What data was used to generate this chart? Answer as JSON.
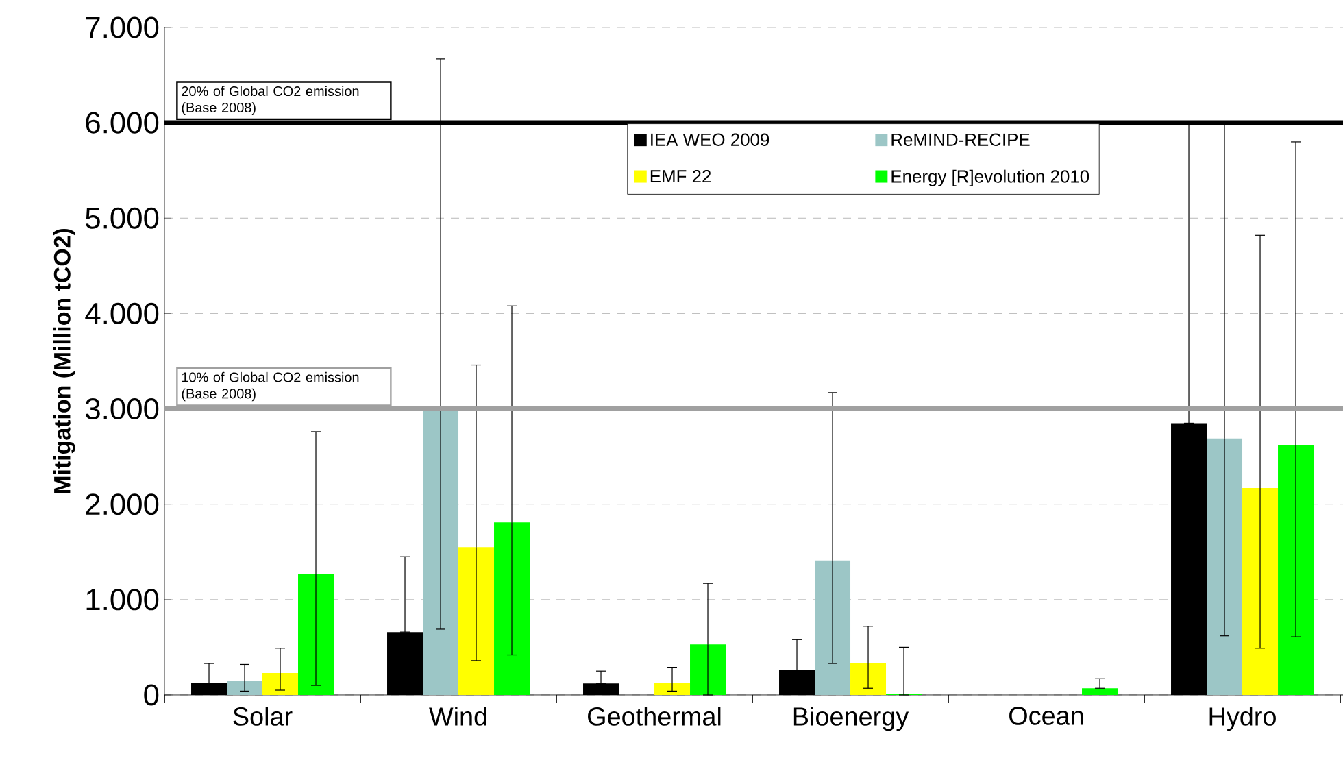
{
  "chart_data": {
    "type": "bar",
    "ylabel": "Mitigation (Million tCO2)",
    "categories": [
      "Solar",
      "Wind",
      "Geothermal",
      "Bioenergy",
      "Ocean",
      "Hydro"
    ],
    "series": [
      {
        "name": "IEA WEO 2009",
        "color": "#000000",
        "values": [
          130,
          660,
          120,
          260,
          0,
          2850
        ],
        "errors": [
          [
            100,
            330
          ],
          [
            660,
            1450
          ],
          [
            120,
            250
          ],
          [
            260,
            580
          ],
          null,
          [
            2850,
            6000
          ]
        ]
      },
      {
        "name": "ReMIND-RECIPE",
        "color": "#9cc6c6",
        "values": [
          150,
          3000,
          0,
          1410,
          0,
          2690
        ],
        "errors": [
          [
            40,
            320
          ],
          [
            690,
            6670
          ],
          null,
          [
            330,
            3170
          ],
          null,
          [
            620,
            6000
          ]
        ]
      },
      {
        "name": "EMF 22",
        "color": "#ffff00",
        "values": [
          230,
          1550,
          130,
          330,
          0,
          2170
        ],
        "errors": [
          [
            50,
            490
          ],
          [
            360,
            3460
          ],
          [
            40,
            290
          ],
          [
            70,
            720
          ],
          null,
          [
            490,
            4820
          ]
        ]
      },
      {
        "name": "Energy [R]evolution 2010",
        "color": "#00ff00",
        "values": [
          1270,
          1810,
          530,
          10,
          70,
          2620
        ],
        "errors": [
          [
            100,
            2760
          ],
          [
            420,
            4080
          ],
          [
            0,
            1170
          ],
          [
            0,
            500
          ],
          [
            70,
            170
          ],
          [
            610,
            5800
          ]
        ]
      }
    ],
    "ylim": [
      0,
      7000
    ],
    "yticks": [
      {
        "value": 0,
        "label": "0"
      },
      {
        "value": 1000,
        "label": "1.000"
      },
      {
        "value": 2000,
        "label": "2.000"
      },
      {
        "value": 3000,
        "label": "3.000"
      },
      {
        "value": 4000,
        "label": "4.000"
      },
      {
        "value": 5000,
        "label": "5.000"
      },
      {
        "value": 6000,
        "label": "6.000"
      },
      {
        "value": 7000,
        "label": "7.000"
      }
    ],
    "ref_lines": [
      {
        "axis": "y",
        "value": 6000,
        "label": "20% of Global CO2 emission (Base 2008)",
        "color": "#000000"
      },
      {
        "axis": "y",
        "value": 3000,
        "label": "10% of Global CO2 emission (Base 2008)",
        "color": "#a0a0a0"
      }
    ],
    "grid": "y",
    "legend": "top"
  }
}
